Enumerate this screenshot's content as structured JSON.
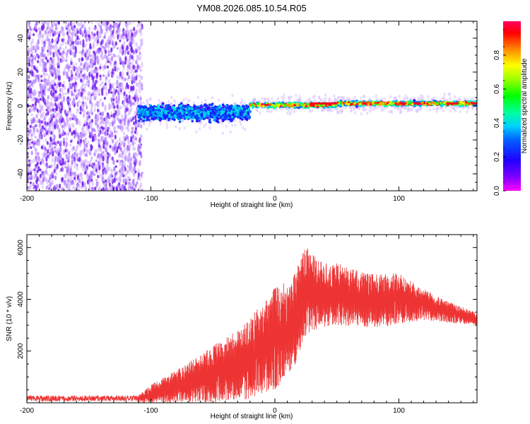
{
  "figure_title": "YM08.2026.085.10.54.R05",
  "chart_data": [
    {
      "type": "heatmap",
      "title": "YM08.2026.085.10.54.R05",
      "xlabel": "Height of straight line (km)",
      "ylabel": "Frequency (Hz)",
      "xlim": [
        -200,
        163
      ],
      "ylim": [
        -50,
        50
      ],
      "x_ticks": [
        -200,
        -100,
        0,
        100
      ],
      "y_ticks": [
        -40,
        -20,
        0,
        20,
        40
      ],
      "colorbar": {
        "label": "Normalized spectral amplitude",
        "range": [
          0.0,
          1.0
        ],
        "ticks": [
          0.0,
          0.2,
          0.4,
          0.6,
          0.8
        ],
        "colormap": [
          "#ff00ff",
          "#6000ff",
          "#0000ff",
          "#00a0ff",
          "#00ffc0",
          "#00ff00",
          "#c0ff00",
          "#ffff00",
          "#ff8000",
          "#ff0000",
          "#ff0040"
        ]
      },
      "regions": [
        {
          "x_range": [
            -200,
            -110
          ],
          "description": "broadband noise",
          "freq_range": [
            -50,
            50
          ],
          "amplitude": [
            0.0,
            0.15
          ]
        },
        {
          "x_range": [
            -110,
            -20
          ],
          "description": "dispersed track",
          "center_freq": [
            -5,
            -3
          ],
          "amplitude": [
            0.1,
            0.45
          ]
        },
        {
          "x_range": [
            -20,
            163
          ],
          "description": "narrow line near 0 Hz",
          "center_freq": [
            0,
            2
          ],
          "amplitude": [
            0.3,
            1.0
          ]
        }
      ]
    },
    {
      "type": "line",
      "xlabel": "Height of straight line (km)",
      "ylabel": "SNR (10 * v/v)",
      "xlim": [
        -200,
        163
      ],
      "ylim": [
        0,
        6500
      ],
      "x_ticks": [
        -200,
        -100,
        0,
        100
      ],
      "y_ticks": [
        2000,
        4000,
        6000
      ],
      "color": "#ee3333",
      "series": [
        {
          "name": "SNR",
          "envelope": [
            {
              "x": -200,
              "low": 0,
              "high": 300
            },
            {
              "x": -110,
              "low": 0,
              "high": 300
            },
            {
              "x": -100,
              "low": 0,
              "high": 700
            },
            {
              "x": -75,
              "low": 0,
              "high": 1400
            },
            {
              "x": -50,
              "low": 0,
              "high": 2200
            },
            {
              "x": -25,
              "low": 100,
              "high": 3000
            },
            {
              "x": 0,
              "low": 500,
              "high": 4500
            },
            {
              "x": 15,
              "low": 1300,
              "high": 4900
            },
            {
              "x": 25,
              "low": 2600,
              "high": 6100
            },
            {
              "x": 35,
              "low": 2900,
              "high": 5500
            },
            {
              "x": 50,
              "low": 3000,
              "high": 5400
            },
            {
              "x": 75,
              "low": 2900,
              "high": 5000
            },
            {
              "x": 100,
              "low": 3000,
              "high": 5000
            },
            {
              "x": 120,
              "low": 3200,
              "high": 4400
            },
            {
              "x": 140,
              "low": 3100,
              "high": 3900
            },
            {
              "x": 163,
              "low": 3000,
              "high": 3500
            }
          ]
        }
      ]
    }
  ]
}
